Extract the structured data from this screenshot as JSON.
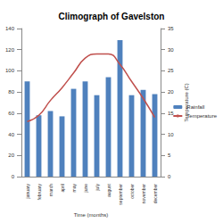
{
  "chart_data": {
    "type": "bar",
    "title": "Climograph of Gavelston",
    "x_label": "Time (months)",
    "y2_label": "Temperature (C)",
    "categories": [
      "january",
      "february",
      "march",
      "april",
      "may",
      "june",
      "july",
      "august",
      "september",
      "october",
      "november",
      "december"
    ],
    "series": [
      {
        "name": "Rainfall",
        "type": "bar",
        "color": "#4f81bd",
        "values": [
          90,
          58,
          62,
          57,
          83,
          90,
          77,
          94,
          129,
          77,
          82,
          78
        ]
      },
      {
        "name": "Temperature",
        "type": "line",
        "axis": "y2",
        "color": "#c0504d",
        "values": [
          13,
          14.5,
          18,
          21,
          24.5,
          28,
          29,
          29,
          26.5,
          22.5,
          18.5,
          14
        ]
      }
    ],
    "ylim": [
      0,
      140
    ],
    "yticks": [
      0,
      20,
      40,
      60,
      80,
      100,
      120,
      140
    ],
    "y2lim": [
      0,
      35
    ],
    "y2ticks": [
      0,
      5,
      10,
      15,
      20,
      25,
      30,
      35
    ],
    "grid": false,
    "legend": "right"
  }
}
